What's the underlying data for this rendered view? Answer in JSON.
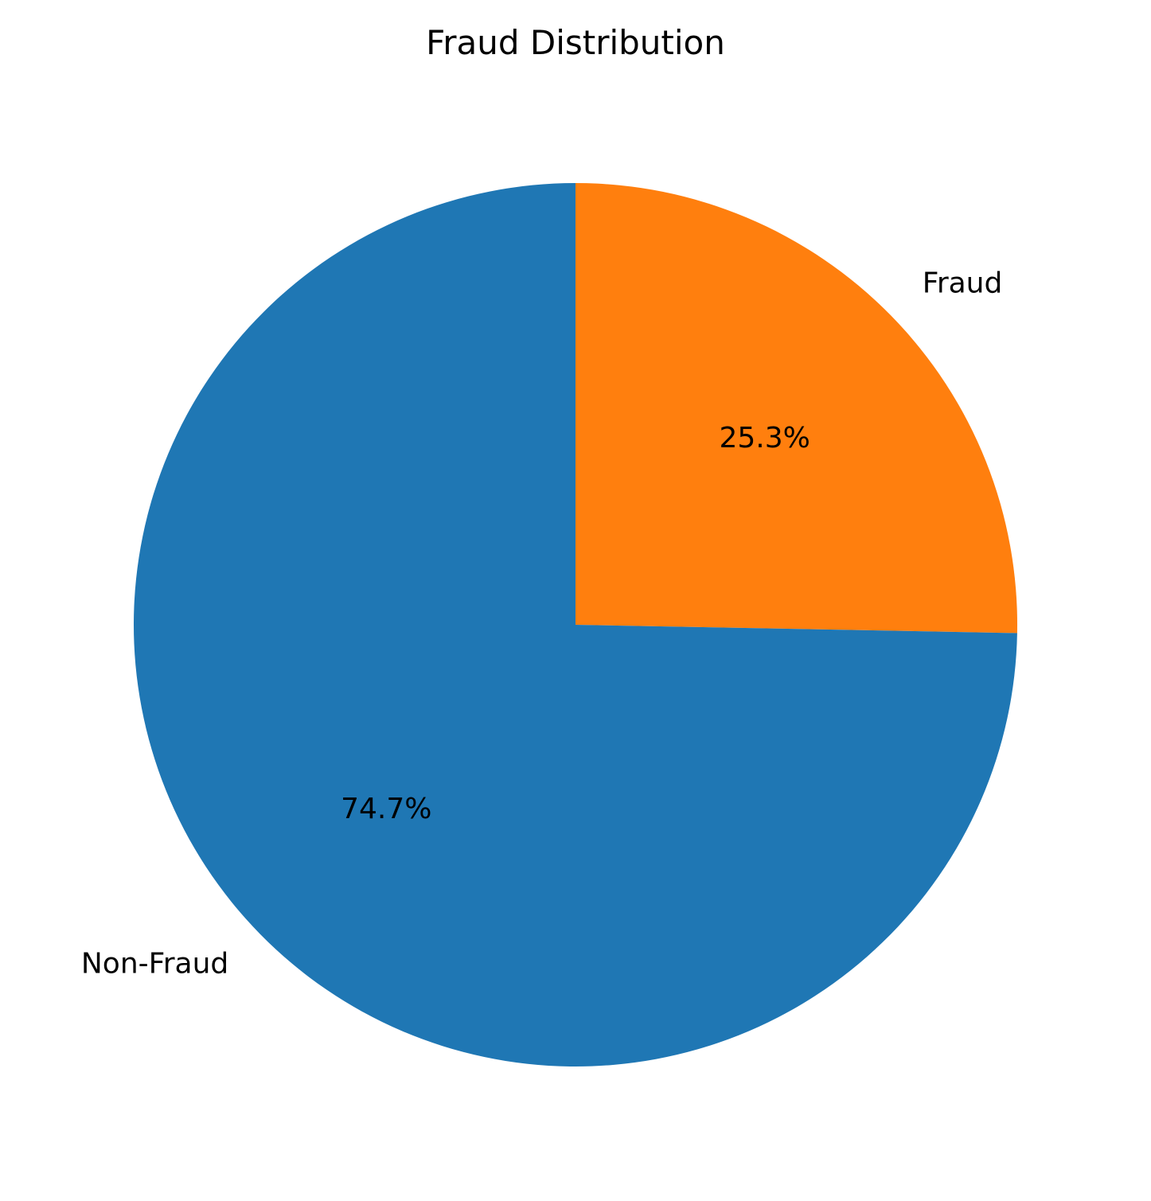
{
  "chart_data": {
    "type": "pie",
    "title": "Fraud Distribution",
    "labels": [
      "Fraud",
      "Non-Fraud"
    ],
    "values": [
      25.3,
      74.7
    ],
    "percent_labels": [
      "25.3%",
      "74.7%"
    ],
    "colors": [
      "#ff7f0e",
      "#1f77b4"
    ],
    "start_angle_deg": 90,
    "direction": "clockwise"
  }
}
